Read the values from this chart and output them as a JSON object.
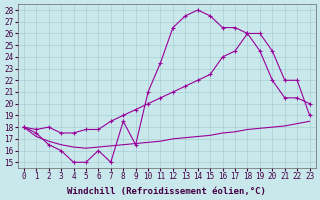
{
  "xlabel": "Windchill (Refroidissement éolien,°C)",
  "background_color": "#c8e8ec",
  "line_color": "#990099",
  "grid_color": "#a8d0d4",
  "xlim": [
    -0.5,
    23.5
  ],
  "ylim": [
    14.5,
    28.5
  ],
  "xticks": [
    0,
    1,
    2,
    3,
    4,
    5,
    6,
    7,
    8,
    9,
    10,
    11,
    12,
    13,
    14,
    15,
    16,
    17,
    18,
    19,
    20,
    21,
    22,
    23
  ],
  "yticks": [
    15,
    16,
    17,
    18,
    19,
    20,
    21,
    22,
    23,
    24,
    25,
    26,
    27,
    28
  ],
  "line1_x": [
    0,
    1,
    2,
    3,
    4,
    5,
    6,
    7,
    8,
    9,
    10,
    11,
    12,
    13,
    14,
    15,
    16,
    17,
    18,
    19,
    20,
    21,
    22,
    23
  ],
  "line1_y": [
    18.0,
    17.5,
    16.5,
    16.0,
    15.0,
    15.0,
    16.0,
    15.0,
    18.5,
    16.5,
    21.0,
    23.5,
    26.5,
    27.5,
    28.0,
    27.5,
    26.5,
    26.5,
    26.0,
    24.5,
    22.0,
    20.5,
    20.5,
    20.0
  ],
  "line2_x": [
    0,
    1,
    2,
    3,
    4,
    5,
    6,
    7,
    8,
    9,
    10,
    11,
    12,
    13,
    14,
    15,
    16,
    17,
    18,
    19,
    20,
    21,
    22,
    23
  ],
  "line2_y": [
    18.0,
    17.8,
    18.0,
    17.5,
    17.5,
    17.8,
    17.8,
    18.5,
    19.0,
    19.5,
    20.0,
    20.5,
    21.0,
    21.5,
    22.0,
    22.5,
    24.0,
    24.5,
    26.0,
    26.0,
    24.5,
    22.0,
    22.0,
    19.0
  ],
  "line3_x": [
    0,
    1,
    2,
    3,
    4,
    5,
    6,
    7,
    8,
    9,
    10,
    11,
    12,
    13,
    14,
    15,
    16,
    17,
    18,
    19,
    20,
    21,
    22,
    23
  ],
  "line3_y": [
    18.0,
    17.2,
    16.8,
    16.5,
    16.3,
    16.2,
    16.3,
    16.4,
    16.5,
    16.6,
    16.7,
    16.8,
    17.0,
    17.1,
    17.2,
    17.3,
    17.5,
    17.6,
    17.8,
    17.9,
    18.0,
    18.1,
    18.3,
    18.5
  ],
  "tick_fontsize": 5.5,
  "xlabel_fontsize": 6.5
}
